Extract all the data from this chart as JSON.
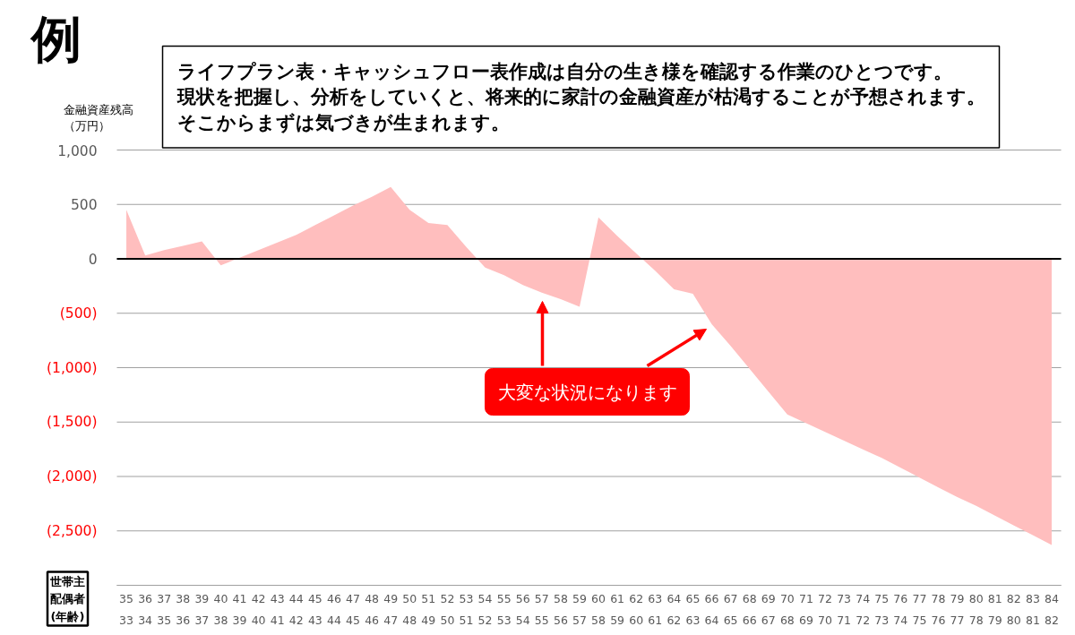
{
  "chart_data": {
    "type": "area",
    "title": "例",
    "subtitle": "ライフプラン表・キャッシュフロー表作成は自分の生き様を確認する作業のひとつです。現状を把握し、分析をしていくと、将来的に家計の金融資産が枯渇することが予想されます。そこからまずは気づきが生まれます。",
    "ylabel": "金融資産残高（万円）",
    "xlabel": "世帯主配偶者(年齢)",
    "annotations": [
      "大変な状況になります"
    ],
    "categories": [
      "35\n33",
      "36\n34",
      "37\n35",
      "38\n36",
      "39\n37",
      "40\n38",
      "41\n39",
      "42\n40",
      "43\n41",
      "44\n42",
      "45\n43",
      "46\n44",
      "47\n45",
      "48\n46",
      "49\n47",
      "50\n48",
      "51\n49",
      "52\n50",
      "53\n51",
      "54\n52",
      "55\n53",
      "56\n54",
      "57\n55",
      "58\n56",
      "59\n57",
      "60\n58",
      "61\n59",
      "62\n60",
      "63\n61",
      "64\n62",
      "65\n63",
      "66\n64",
      "67\n65",
      "68\n66",
      "69\n67",
      "70\n68",
      "71\n69",
      "72\n70",
      "73\n71",
      "74\n72",
      "75\n73",
      "76\n74",
      "77\n75",
      "78\n76",
      "79\n77",
      "80\n78",
      "81\n79",
      "82\n80",
      "83\n81",
      "84\n82"
    ],
    "series": [
      {
        "color": "#ffbebe",
        "values": [
          450,
          30,
          80,
          120,
          160,
          -60,
          10,
          80,
          150,
          220,
          310,
          400,
          490,
          570,
          660,
          450,
          330,
          310,
          110,
          -80,
          -150,
          -240,
          -310,
          -370,
          -440,
          380,
          210,
          50,
          -110,
          -280,
          -320,
          -600,
          -800,
          -1010,
          -1220,
          -1430,
          -1510,
          -1590,
          -1670,
          -1750,
          -1830,
          -1920,
          -2010,
          -2100,
          -2190,
          -2270,
          -2360,
          -2450,
          -2540,
          -2630
        ]
      }
    ],
    "ylim": [
      -3000,
      1000
    ],
    "yticks": [
      {
        "value": 1000,
        "label": "1,000"
      },
      500,
      0,
      {
        "value": -500,
        "label": "(500)"
      },
      {
        "value": -1000,
        "label": "(1,000)"
      },
      {
        "value": -1500,
        "label": "(1,500)"
      },
      {
        "value": -2000,
        "label": "(2,000)"
      },
      {
        "value": -2500,
        "label": "(2,500)"
      },
      {
        "value": -3000,
        "label": null
      }
    ],
    "grid": "y",
    "ref_lines": [
      {
        "axis": "y",
        "value": 0,
        "color": "#000000"
      }
    ]
  }
}
